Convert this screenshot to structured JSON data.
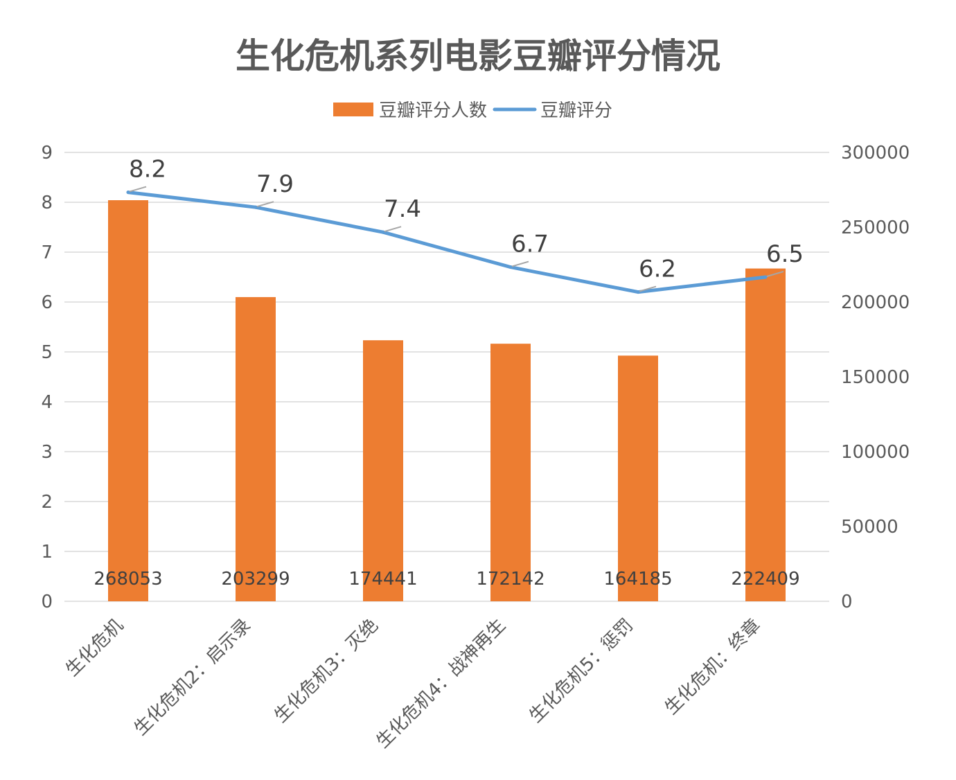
{
  "chart_data": {
    "type": "bar",
    "title": "生化危机系列电影豆瓣评分情况",
    "categories": [
      "生化危机",
      "生化危机2：启示录",
      "生化危机3：灭绝",
      "生化危机4：战神再生",
      "生化危机5：惩罚",
      "生化危机：终章"
    ],
    "series": [
      {
        "name": "豆瓣评分人数",
        "type": "bar",
        "axis": "right",
        "color": "#ED7D31",
        "values": [
          268053,
          203299,
          174441,
          172142,
          164185,
          222409
        ],
        "value_labels": [
          "268053",
          "203299",
          "174441",
          "172142",
          "164185",
          "222409"
        ]
      },
      {
        "name": "豆瓣评分",
        "type": "line",
        "axis": "left",
        "color": "#5B9BD5",
        "values": [
          8.2,
          7.9,
          7.4,
          6.7,
          6.2,
          6.5
        ],
        "value_labels": [
          "8.2",
          "7.9",
          "7.4",
          "6.7",
          "6.2",
          "6.5"
        ]
      }
    ],
    "y_left": {
      "min": 0,
      "max": 9,
      "ticks": [
        0,
        1,
        2,
        3,
        4,
        5,
        6,
        7,
        8,
        9
      ],
      "tick_labels": [
        "0",
        "1",
        "2",
        "3",
        "4",
        "5",
        "6",
        "7",
        "8",
        "9"
      ]
    },
    "y_right": {
      "min": 0,
      "max": 300000,
      "ticks": [
        0,
        50000,
        100000,
        150000,
        200000,
        250000,
        300000
      ],
      "tick_labels": [
        "0",
        "50000",
        "100000",
        "150000",
        "200000",
        "250000",
        "300000"
      ]
    },
    "grid": true,
    "legend_position": "top-center"
  }
}
